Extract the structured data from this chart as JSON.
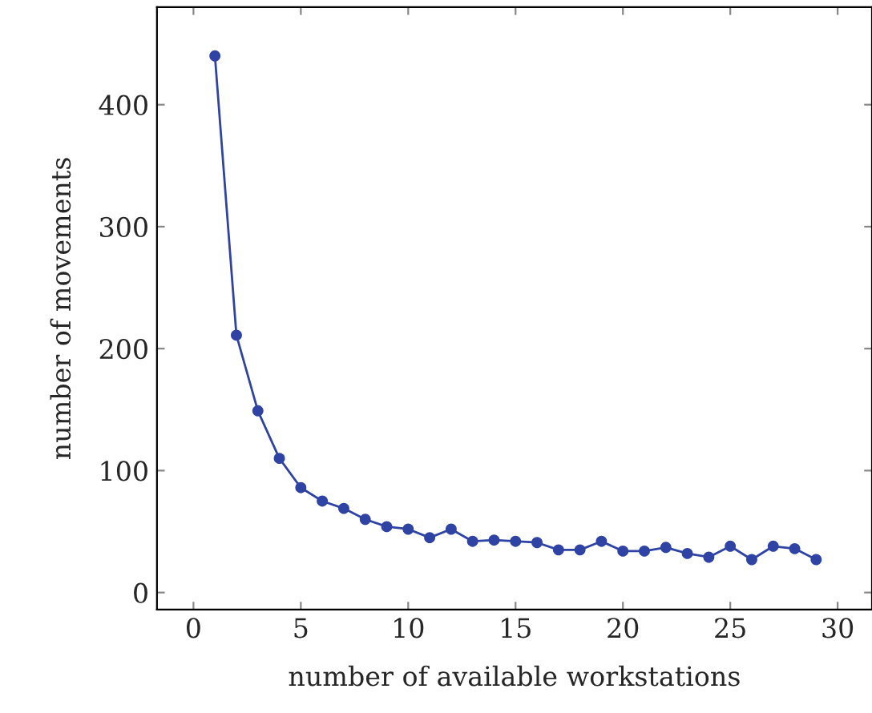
{
  "chart_data": {
    "type": "line",
    "xlabel": "number of available workstations",
    "ylabel": "number of movements",
    "x": [
      1,
      2,
      3,
      4,
      5,
      6,
      7,
      8,
      9,
      10,
      11,
      12,
      13,
      14,
      15,
      16,
      17,
      18,
      19,
      20,
      21,
      22,
      23,
      24,
      25,
      26,
      27,
      28,
      29
    ],
    "series": [
      {
        "color": "#2e43a3",
        "values": [
          440,
          211,
          149,
          110,
          86,
          75,
          69,
          60,
          54,
          52,
          45,
          52,
          42,
          43,
          42,
          41,
          35,
          35,
          42,
          34,
          34,
          37,
          32,
          29,
          38,
          27,
          38,
          36,
          27
        ]
      }
    ],
    "xlim": [
      -1.7,
      31.6
    ],
    "ylim": [
      -14,
      480
    ],
    "xticks": [
      0,
      5,
      10,
      15,
      20,
      25,
      30
    ],
    "yticks": [
      0,
      100,
      200,
      300,
      400
    ],
    "marker": "circle",
    "line_style": "solid",
    "grid": false
  }
}
